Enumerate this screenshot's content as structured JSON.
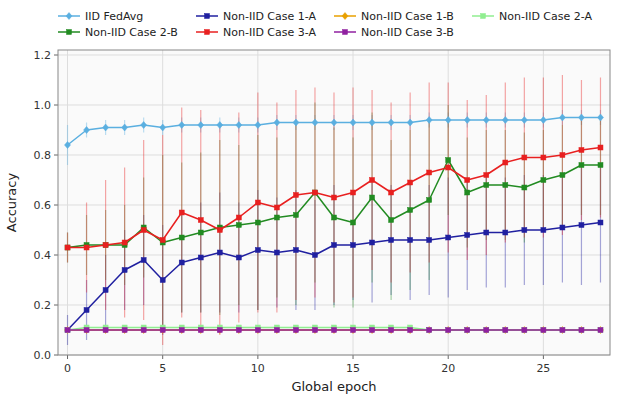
{
  "chart_data": {
    "type": "line",
    "x_label": "Global epoch",
    "y_label": "Accuracy",
    "xlim": [
      -0.5,
      28.5
    ],
    "ylim": [
      0.0,
      1.22
    ],
    "xticks": [
      0,
      5,
      10,
      15,
      20,
      25
    ],
    "yticks": [
      {
        "value": 0.0,
        "label": "0.0"
      },
      0.2,
      0.4,
      0.6,
      0.8,
      {
        "value": 1.0,
        "label": "1.0"
      },
      1.2
    ],
    "grid": true,
    "legend": "upper left",
    "x": [
      0,
      1,
      2,
      3,
      4,
      5,
      6,
      7,
      8,
      9,
      10,
      11,
      12,
      13,
      14,
      15,
      16,
      17,
      18,
      19,
      20,
      21,
      22,
      23,
      24,
      25,
      26,
      27,
      28
    ],
    "series": [
      {
        "name": "IID FedAvg",
        "color": "#5aafe0",
        "marker": "diamond",
        "values": [
          0.84,
          0.9,
          0.91,
          0.91,
          0.92,
          0.91,
          0.92,
          0.92,
          0.92,
          0.92,
          0.92,
          0.93,
          0.93,
          0.93,
          0.93,
          0.93,
          0.93,
          0.93,
          0.93,
          0.94,
          0.94,
          0.94,
          0.94,
          0.94,
          0.94,
          0.94,
          0.95,
          0.95,
          0.95
        ],
        "errors": [
          0.08,
          0.03,
          0.03,
          0.03,
          0.03,
          0.03,
          0.03,
          0.03,
          0.03,
          0.03,
          0.03,
          0.03,
          0.03,
          0.03,
          0.03,
          0.03,
          0.03,
          0.03,
          0.03,
          0.03,
          0.03,
          0.03,
          0.03,
          0.03,
          0.03,
          0.03,
          0.03,
          0.03,
          0.03
        ]
      },
      {
        "name": "Non-IID Case 1-A",
        "color": "#2020a0",
        "marker": "square",
        "values": [
          0.1,
          0.18,
          0.26,
          0.34,
          0.38,
          0.3,
          0.37,
          0.39,
          0.41,
          0.39,
          0.42,
          0.41,
          0.42,
          0.4,
          0.44,
          0.44,
          0.45,
          0.46,
          0.46,
          0.46,
          0.47,
          0.48,
          0.49,
          0.49,
          0.5,
          0.5,
          0.51,
          0.52,
          0.53
        ],
        "errors": [
          0.06,
          0.12,
          0.14,
          0.16,
          0.18,
          0.22,
          0.2,
          0.22,
          0.24,
          0.22,
          0.24,
          0.22,
          0.24,
          0.22,
          0.24,
          0.22,
          0.24,
          0.22,
          0.24,
          0.22,
          0.24,
          0.22,
          0.22,
          0.22,
          0.22,
          0.22,
          0.22,
          0.24,
          0.24
        ]
      },
      {
        "name": "Non-IID Case 1-B",
        "color": "#e8a000",
        "marker": "diamond",
        "values": [
          0.1,
          0.1,
          0.1,
          0.1,
          0.1,
          0.1,
          0.1,
          0.1,
          0.1,
          0.1,
          0.1,
          0.1,
          0.1,
          0.1,
          0.1,
          0.1,
          0.1,
          0.1,
          0.1,
          0.1,
          0.1,
          0.1,
          0.1,
          0.1,
          0.1,
          0.1,
          0.1,
          0.1,
          0.1
        ],
        "errors": [
          0.005,
          0.005,
          0.005,
          0.005,
          0.005,
          0.005,
          0.005,
          0.005,
          0.005,
          0.005,
          0.005,
          0.005,
          0.005,
          0.005,
          0.005,
          0.005,
          0.005,
          0.005,
          0.005,
          0.005,
          0.005,
          0.005,
          0.005,
          0.005,
          0.005,
          0.005,
          0.005,
          0.005,
          0.005
        ]
      },
      {
        "name": "Non-IID Case 2-A",
        "color": "#90ee90",
        "marker": "square",
        "values": [
          0.1,
          0.11,
          0.11,
          0.11,
          0.11,
          0.11,
          0.11,
          0.11,
          0.11,
          0.11,
          0.11,
          0.11,
          0.11,
          0.11,
          0.11,
          0.11,
          0.11,
          0.11,
          0.11,
          0.1,
          0.1,
          0.1,
          0.1,
          0.1,
          0.1,
          0.1,
          0.1,
          0.1,
          0.1
        ],
        "errors": [
          0.005,
          0.005,
          0.005,
          0.005,
          0.005,
          0.005,
          0.005,
          0.005,
          0.005,
          0.005,
          0.005,
          0.005,
          0.005,
          0.005,
          0.005,
          0.005,
          0.005,
          0.005,
          0.005,
          0.005,
          0.005,
          0.005,
          0.005,
          0.005,
          0.005,
          0.005,
          0.005,
          0.005,
          0.005
        ]
      },
      {
        "name": "Non-IID Case 2-B",
        "color": "#228B22",
        "marker": "square",
        "values": [
          0.43,
          0.44,
          0.44,
          0.44,
          0.51,
          0.45,
          0.47,
          0.49,
          0.51,
          0.52,
          0.53,
          0.55,
          0.56,
          0.65,
          0.55,
          0.53,
          0.63,
          0.54,
          0.58,
          0.62,
          0.78,
          0.65,
          0.68,
          0.68,
          0.67,
          0.7,
          0.72,
          0.76,
          0.76
        ],
        "errors": [
          0.06,
          0.12,
          0.14,
          0.16,
          0.2,
          0.35,
          0.3,
          0.32,
          0.35,
          0.32,
          0.35,
          0.32,
          0.36,
          0.36,
          0.36,
          0.34,
          0.34,
          0.32,
          0.32,
          0.32,
          0.22,
          0.22,
          0.22,
          0.22,
          0.22,
          0.2,
          0.2,
          0.2,
          0.2
        ]
      },
      {
        "name": "Non-IID Case 3-A",
        "color": "#e82020",
        "marker": "square",
        "values": [
          0.43,
          0.43,
          0.44,
          0.45,
          0.5,
          0.46,
          0.57,
          0.54,
          0.5,
          0.55,
          0.61,
          0.59,
          0.64,
          0.65,
          0.63,
          0.65,
          0.7,
          0.65,
          0.69,
          0.73,
          0.75,
          0.7,
          0.72,
          0.77,
          0.79,
          0.79,
          0.8,
          0.82,
          0.83
        ],
        "errors": [
          0.06,
          0.18,
          0.26,
          0.3,
          0.36,
          0.42,
          0.42,
          0.44,
          0.42,
          0.42,
          0.44,
          0.42,
          0.42,
          0.42,
          0.42,
          0.42,
          0.36,
          0.36,
          0.36,
          0.36,
          0.34,
          0.32,
          0.32,
          0.32,
          0.32,
          0.32,
          0.32,
          0.28,
          0.28
        ]
      },
      {
        "name": "Non-IID Case 3-B",
        "color": "#9020a0",
        "marker": "square",
        "values": [
          0.1,
          0.1,
          0.1,
          0.1,
          0.1,
          0.1,
          0.1,
          0.1,
          0.1,
          0.1,
          0.1,
          0.1,
          0.1,
          0.1,
          0.1,
          0.1,
          0.1,
          0.1,
          0.1,
          0.1,
          0.1,
          0.1,
          0.1,
          0.1,
          0.1,
          0.1,
          0.1,
          0.1,
          0.1
        ],
        "errors": [
          0.005,
          0.005,
          0.005,
          0.005,
          0.005,
          0.005,
          0.005,
          0.005,
          0.005,
          0.005,
          0.005,
          0.005,
          0.005,
          0.005,
          0.005,
          0.005,
          0.005,
          0.005,
          0.005,
          0.005,
          0.005,
          0.005,
          0.005,
          0.005,
          0.005,
          0.005,
          0.005,
          0.005,
          0.005
        ]
      }
    ]
  }
}
